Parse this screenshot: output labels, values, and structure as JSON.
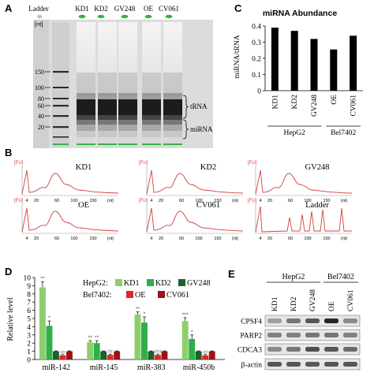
{
  "panels": {
    "A": "A",
    "B": "B",
    "C": "C",
    "D": "D",
    "E": "E"
  },
  "panel_a": {
    "unit": "[nt]",
    "lanes": [
      "Ladder",
      "KD1",
      "KD2",
      "GV248",
      "OE",
      "CV061"
    ],
    "ladder_marks": [
      "150",
      "100",
      "80",
      "60",
      "40",
      "20"
    ],
    "labels": {
      "trna": "tRNA",
      "mirna": "miRNA"
    },
    "colors": {
      "gel_dark": "#1c1c1c",
      "gel_light": "#e9e9e9",
      "marker": "#36b34a"
    }
  },
  "panel_b": {
    "fu": "[FU]",
    "x_ticks": [
      "4",
      "20",
      "60",
      "100",
      "150",
      "(nt)"
    ],
    "traces": [
      "KD1",
      "KD2",
      "GV248",
      "OE",
      "CV061",
      "Ladder"
    ],
    "color": "#d24040"
  },
  "panel_e": {
    "groups": [
      "HepG2",
      "Bel7402"
    ],
    "lanes": [
      "KD1",
      "KD2",
      "GV248",
      "OE",
      "CV061"
    ],
    "proteins": [
      "CPSF4",
      "PARP2",
      "CDCA3",
      "β-actin"
    ]
  },
  "chart_data": [
    {
      "type": "bar",
      "panel": "C",
      "title": "miRNA Abundance",
      "ylabel": "miRNA/tRNA",
      "categories": [
        "KD1",
        "KD2",
        "GV248",
        "OE",
        "CV061"
      ],
      "values": [
        0.39,
        0.37,
        0.32,
        0.255,
        0.34
      ],
      "ylim": [
        0,
        0.4
      ],
      "yticks": [
        "0",
        "0.1",
        "0.2",
        "0.3",
        "0.4"
      ],
      "groups": [
        {
          "name": "HepG2",
          "members": [
            "KD1",
            "KD2",
            "GV248"
          ]
        },
        {
          "name": "Bel7402",
          "members": [
            "OE",
            "CV061"
          ]
        }
      ],
      "color": "#000000"
    },
    {
      "type": "bar",
      "panel": "D",
      "ylabel": "Relative level",
      "categories": [
        "miR-142",
        "miR-145",
        "miR-383",
        "miR-450b"
      ],
      "yticks": [
        "0",
        "1",
        "2",
        "3",
        "4",
        "5",
        "6",
        "7",
        "8",
        "9",
        "10"
      ],
      "ylim": [
        0,
        10
      ],
      "legend": {
        "HepG2_label": "HepG2:",
        "Bel7402_label": "Bel7402:"
      },
      "series": [
        {
          "name": "KD1",
          "group": "HepG2",
          "color": "#8ccf6a",
          "values": [
            8.8,
            2.1,
            5.5,
            4.7
          ],
          "errors": [
            0.7,
            0.2,
            0.3,
            0.4
          ],
          "sig": [
            "**",
            "**",
            "**",
            "***"
          ]
        },
        {
          "name": "KD2",
          "group": "HepG2",
          "color": "#2fae4a",
          "values": [
            4.1,
            2.0,
            4.5,
            2.5
          ],
          "errors": [
            0.6,
            0.3,
            0.7,
            0.5
          ],
          "sig": [
            "*",
            "**",
            "*",
            "*"
          ]
        },
        {
          "name": "GV248",
          "group": "HepG2",
          "color": "#1f5e2e",
          "values": [
            1.0,
            1.0,
            1.0,
            1.0
          ],
          "errors": [
            0.05,
            0.05,
            0.05,
            0.05
          ],
          "sig": [
            "",
            "",
            "",
            ""
          ]
        },
        {
          "name": "OE",
          "group": "Bel7402",
          "color": "#e02525",
          "values": [
            0.5,
            0.55,
            0.55,
            0.5
          ],
          "errors": [
            0.1,
            0.1,
            0.1,
            0.1
          ],
          "sig": [
            "##",
            "##",
            "###",
            "##"
          ]
        },
        {
          "name": "CV061",
          "group": "Bel7402",
          "color": "#9b1313",
          "values": [
            1.0,
            1.0,
            1.0,
            1.0
          ],
          "errors": [
            0.05,
            0.05,
            0.05,
            0.05
          ],
          "sig": [
            "",
            "",
            "",
            ""
          ]
        }
      ]
    }
  ]
}
